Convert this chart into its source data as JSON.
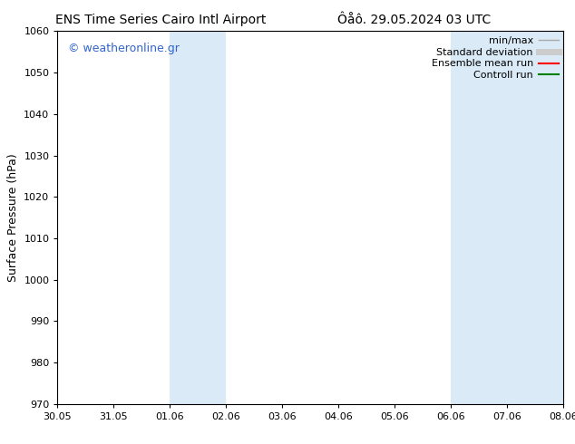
{
  "title_left": "ENS Time Series Cairo Intl Airport",
  "title_right": "Ôåô. 29.05.2024 03 UTC",
  "ylabel": "Surface Pressure (hPa)",
  "ylim": [
    970,
    1060
  ],
  "yticks": [
    970,
    980,
    990,
    1000,
    1010,
    1020,
    1030,
    1040,
    1050,
    1060
  ],
  "xtick_labels": [
    "30.05",
    "31.05",
    "01.06",
    "02.06",
    "03.06",
    "04.06",
    "05.06",
    "06.06",
    "07.06",
    "08.06"
  ],
  "xtick_positions": [
    0,
    1,
    2,
    3,
    4,
    5,
    6,
    7,
    8,
    9
  ],
  "x_min": 0,
  "x_max": 9,
  "shaded_regions": [
    {
      "x_start": 2,
      "x_end": 3,
      "color": "#daeaf7"
    },
    {
      "x_start": 7,
      "x_end": 9,
      "color": "#daeaf7"
    }
  ],
  "watermark": "© weatheronline.gr",
  "watermark_color": "#3366cc",
  "legend_entries": [
    {
      "label": "min/max",
      "color": "#aaaaaa",
      "lw": 1.0,
      "style": "solid"
    },
    {
      "label": "Standard deviation",
      "color": "#cccccc",
      "lw": 5,
      "style": "solid"
    },
    {
      "label": "Ensemble mean run",
      "color": "red",
      "lw": 1.5,
      "style": "solid"
    },
    {
      "label": "Controll run",
      "color": "green",
      "lw": 1.5,
      "style": "solid"
    }
  ],
  "bg_color": "#ffffff",
  "plot_bg_color": "#ffffff",
  "title_fontsize": 10,
  "tick_fontsize": 8,
  "ylabel_fontsize": 9,
  "legend_fontsize": 8,
  "watermark_fontsize": 9
}
